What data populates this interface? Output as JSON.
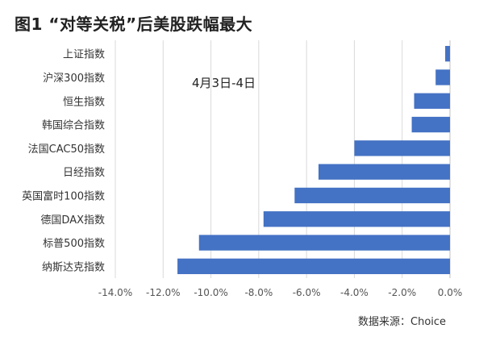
{
  "chart_data": {
    "type": "bar",
    "orientation": "horizontal",
    "title": "图1 “对等关税”后美股跌幅最大",
    "annotation": "4月3日-4日",
    "source": "数据来源：Choice",
    "categories": [
      "上证指数",
      "沪深300指数",
      "恒生指数",
      "韩国综合指数",
      "法国CAC50指数",
      "日经指数",
      "英国富时100指数",
      "德国DAX指数",
      "标普500指数",
      "纳斯达克指数"
    ],
    "values": [
      -0.2,
      -0.6,
      -1.5,
      -1.6,
      -4.0,
      -5.5,
      -6.5,
      -7.8,
      -10.5,
      -11.4
    ],
    "x_ticks": [
      "-14.0%",
      "-12.0%",
      "-10.0%",
      "-8.0%",
      "-6.0%",
      "-4.0%",
      "-2.0%",
      "0.0%"
    ],
    "xlim": [
      -14,
      0
    ],
    "xlabel": "",
    "ylabel": "",
    "grid": "vertical",
    "legend": "none",
    "bar_color": "#4472C4"
  }
}
